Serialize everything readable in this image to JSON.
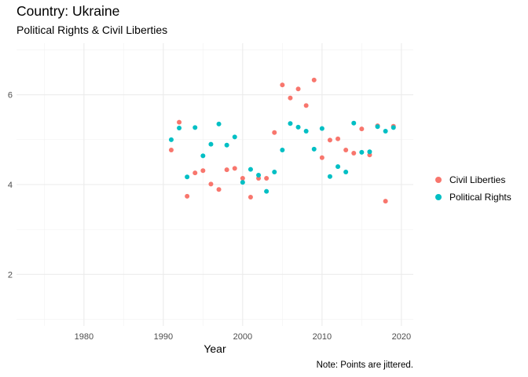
{
  "chart_data": {
    "type": "scatter",
    "title": "Country: Ukraine",
    "subtitle": "Political Rights & Civil Liberties",
    "xlabel": "Year",
    "ylabel": "",
    "xlim": [
      1971.5,
      2021.5
    ],
    "ylim": [
      0.85,
      7.15
    ],
    "x_ticks": [
      1980,
      1990,
      2000,
      2010,
      2020
    ],
    "y_ticks": [
      2,
      4,
      6
    ],
    "grid": true,
    "legend_position": "right",
    "note": "Note: Points are jittered.",
    "series": [
      {
        "name": "Civil Liberties",
        "color": "#F8766D",
        "points": [
          [
            1991,
            4.77
          ],
          [
            1992,
            5.39
          ],
          [
            1993,
            3.74
          ],
          [
            1994,
            4.26
          ],
          [
            1995,
            4.31
          ],
          [
            1996,
            4.01
          ],
          [
            1997,
            3.89
          ],
          [
            1998,
            4.33
          ],
          [
            1999,
            4.36
          ],
          [
            2000,
            4.14
          ],
          [
            2001,
            3.72
          ],
          [
            2002,
            4.14
          ],
          [
            2003,
            4.14
          ],
          [
            2004,
            5.16
          ],
          [
            2005,
            6.22
          ],
          [
            2006,
            5.93
          ],
          [
            2007,
            6.13
          ],
          [
            2008,
            5.76
          ],
          [
            2009,
            6.33
          ],
          [
            2010,
            4.6
          ],
          [
            2011,
            4.99
          ],
          [
            2012,
            5.02
          ],
          [
            2013,
            4.77
          ],
          [
            2014,
            4.7
          ],
          [
            2015,
            5.24
          ],
          [
            2016,
            4.66
          ],
          [
            2017,
            5.31
          ],
          [
            2018,
            3.63
          ],
          [
            2019,
            5.3
          ]
        ]
      },
      {
        "name": "Political Rights",
        "color": "#00BFC4",
        "points": [
          [
            1991,
            5.0
          ],
          [
            1992,
            5.26
          ],
          [
            1993,
            4.17
          ],
          [
            1994,
            5.27
          ],
          [
            1995,
            4.64
          ],
          [
            1996,
            4.9
          ],
          [
            1997,
            5.35
          ],
          [
            1998,
            4.88
          ],
          [
            1999,
            5.06
          ],
          [
            2000,
            4.05
          ],
          [
            2001,
            4.34
          ],
          [
            2002,
            4.21
          ],
          [
            2003,
            3.85
          ],
          [
            2004,
            4.28
          ],
          [
            2005,
            4.77
          ],
          [
            2006,
            5.36
          ],
          [
            2007,
            5.28
          ],
          [
            2008,
            5.19
          ],
          [
            2009,
            4.79
          ],
          [
            2010,
            5.25
          ],
          [
            2011,
            4.18
          ],
          [
            2012,
            4.4
          ],
          [
            2013,
            4.28
          ],
          [
            2014,
            5.37
          ],
          [
            2015,
            4.72
          ],
          [
            2016,
            4.73
          ],
          [
            2017,
            5.29
          ],
          [
            2018,
            5.19
          ],
          [
            2019,
            5.27
          ]
        ]
      }
    ]
  }
}
